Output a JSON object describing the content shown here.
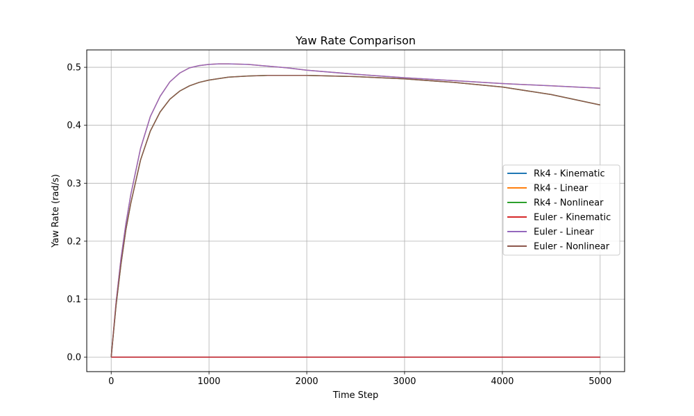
{
  "chart_data": {
    "type": "line",
    "title": "Yaw Rate Comparison",
    "xlabel": "Time Step",
    "ylabel": "Yaw Rate (rad/s)",
    "xlim": [
      -250,
      5250
    ],
    "ylim": [
      -0.025,
      0.53
    ],
    "x_ticks": [
      0,
      1000,
      2000,
      3000,
      4000,
      5000
    ],
    "y_ticks": [
      0.0,
      0.1,
      0.2,
      0.3,
      0.4,
      0.5
    ],
    "x_tick_labels": [
      "0",
      "1000",
      "2000",
      "3000",
      "4000",
      "5000"
    ],
    "y_tick_labels": [
      "0.0",
      "0.1",
      "0.2",
      "0.3",
      "0.4",
      "0.5"
    ],
    "grid": true,
    "legend_position": "center-right",
    "series": [
      {
        "name": "Rk4 - Kinematic",
        "color": "#1f77b4",
        "x": [
          0,
          1000,
          2000,
          3000,
          4000,
          5000
        ],
        "y": [
          0,
          0,
          0,
          0,
          0,
          0
        ]
      },
      {
        "name": "Rk4 - Linear",
        "color": "#ff7f0e",
        "x": [
          0,
          50,
          100,
          150,
          200,
          300,
          400,
          500,
          600,
          700,
          800,
          900,
          1000,
          1100,
          1200,
          1400,
          1600,
          1800,
          2000,
          2500,
          3000,
          3500,
          4000,
          4500,
          5000
        ],
        "y": [
          0.0,
          0.095,
          0.17,
          0.23,
          0.28,
          0.36,
          0.415,
          0.45,
          0.475,
          0.49,
          0.499,
          0.503,
          0.505,
          0.506,
          0.506,
          0.505,
          0.502,
          0.499,
          0.495,
          0.488,
          0.482,
          0.477,
          0.472,
          0.468,
          0.464
        ]
      },
      {
        "name": "Rk4 - Nonlinear",
        "color": "#2ca02c",
        "x": [
          0,
          50,
          100,
          150,
          200,
          300,
          400,
          500,
          600,
          700,
          800,
          900,
          1000,
          1200,
          1400,
          1600,
          1800,
          2000,
          2500,
          3000,
          3500,
          4000,
          4500,
          5000
        ],
        "y": [
          0.0,
          0.09,
          0.16,
          0.22,
          0.265,
          0.34,
          0.39,
          0.423,
          0.445,
          0.459,
          0.468,
          0.474,
          0.478,
          0.483,
          0.485,
          0.486,
          0.486,
          0.486,
          0.484,
          0.48,
          0.474,
          0.466,
          0.453,
          0.435
        ]
      },
      {
        "name": "Euler - Kinematic",
        "color": "#d62728",
        "x": [
          0,
          1000,
          2000,
          3000,
          4000,
          5000
        ],
        "y": [
          0,
          0,
          0,
          0,
          0,
          0
        ]
      },
      {
        "name": "Euler - Linear",
        "color": "#9467bd",
        "x": [
          0,
          50,
          100,
          150,
          200,
          300,
          400,
          500,
          600,
          700,
          800,
          900,
          1000,
          1100,
          1200,
          1400,
          1600,
          1800,
          2000,
          2500,
          3000,
          3500,
          4000,
          4500,
          5000
        ],
        "y": [
          0.0,
          0.095,
          0.17,
          0.23,
          0.28,
          0.36,
          0.415,
          0.45,
          0.475,
          0.49,
          0.499,
          0.503,
          0.505,
          0.506,
          0.506,
          0.505,
          0.502,
          0.499,
          0.495,
          0.488,
          0.482,
          0.477,
          0.472,
          0.468,
          0.464
        ]
      },
      {
        "name": "Euler - Nonlinear",
        "color": "#8c564b",
        "x": [
          0,
          50,
          100,
          150,
          200,
          300,
          400,
          500,
          600,
          700,
          800,
          900,
          1000,
          1200,
          1400,
          1600,
          1800,
          2000,
          2500,
          3000,
          3500,
          4000,
          4500,
          5000
        ],
        "y": [
          0.0,
          0.09,
          0.16,
          0.22,
          0.265,
          0.34,
          0.39,
          0.423,
          0.445,
          0.459,
          0.468,
          0.474,
          0.478,
          0.483,
          0.485,
          0.486,
          0.486,
          0.486,
          0.484,
          0.48,
          0.474,
          0.466,
          0.453,
          0.435
        ]
      }
    ]
  }
}
